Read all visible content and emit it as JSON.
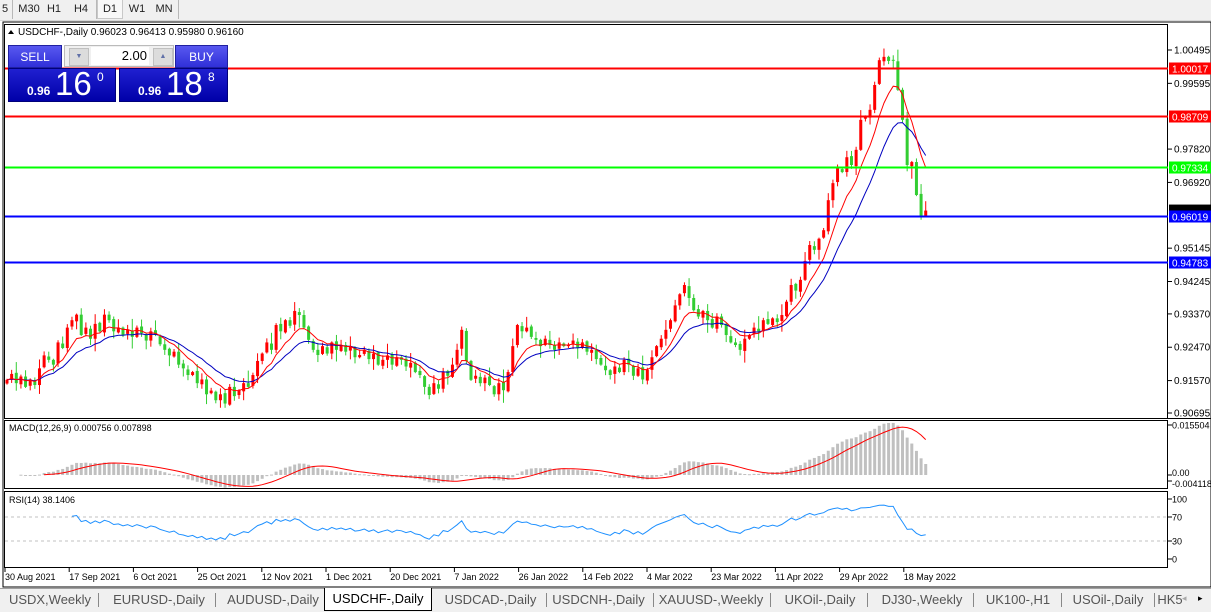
{
  "toolbar": {
    "timeframes": [
      {
        "label": "5",
        "active": false
      },
      {
        "label": "M30",
        "active": false
      },
      {
        "label": "H1",
        "active": false
      },
      {
        "label": "H4",
        "active": false
      },
      {
        "label": "D1",
        "active": true
      },
      {
        "label": "W1",
        "active": false
      },
      {
        "label": "MN",
        "active": false
      }
    ]
  },
  "chart": {
    "header": "USDCHF-,Daily  0.96023 0.96413 0.95980 0.96160",
    "symbol": "USDCHF-",
    "timeframe": "Daily",
    "ohlc": {
      "open": 0.96023,
      "high": 0.96413,
      "low": 0.9598,
      "close": 0.9616
    },
    "bull_color": "#ff0000",
    "bear_color": "#32cd32",
    "price_ticks": [
      "1.00495",
      "0.99595",
      "0.97820",
      "0.96920",
      "0.95145",
      "0.94245",
      "0.93370",
      "0.92470",
      "0.91570",
      "0.90695"
    ],
    "horizontal_lines": [
      {
        "price": "1.00017",
        "color": "#ff0000"
      },
      {
        "price": "0.98709",
        "color": "#ff0000"
      },
      {
        "price": "0.97334",
        "color": "#00ff00"
      },
      {
        "price": "0.96019",
        "color": "#0000ff"
      },
      {
        "price": "0.94783",
        "color": "#0000ff"
      }
    ],
    "current_price": "0.96160",
    "ma_colors": {
      "fast": "#ff0000",
      "slow": "#0000c0"
    },
    "closes": [
      0.9159,
      0.9175,
      0.915,
      0.9168,
      0.914,
      0.916,
      0.9145,
      0.919,
      0.9225,
      0.9213,
      0.92,
      0.926,
      0.9245,
      0.93,
      0.932,
      0.9335,
      0.928,
      0.93,
      0.927,
      0.931,
      0.929,
      0.9335,
      0.932,
      0.929,
      0.93,
      0.928,
      0.9295,
      0.9275,
      0.93,
      0.9285,
      0.9265,
      0.929,
      0.928,
      0.9255,
      0.924,
      0.9225,
      0.9235,
      0.92,
      0.919,
      0.9172,
      0.918,
      0.915,
      0.916,
      0.912,
      0.913,
      0.9104,
      0.912,
      0.9095,
      0.914,
      0.9115,
      0.9131,
      0.915,
      0.914,
      0.9172,
      0.921,
      0.923,
      0.926,
      0.924,
      0.9307,
      0.929,
      0.932,
      0.9305,
      0.9345,
      0.9334,
      0.93,
      0.9267,
      0.924,
      0.9226,
      0.925,
      0.923,
      0.926,
      0.924,
      0.9253,
      0.9235,
      0.925,
      0.922,
      0.9226,
      0.924,
      0.9215,
      0.923,
      0.92,
      0.9213,
      0.9225,
      0.92,
      0.922,
      0.9213,
      0.9195,
      0.9205,
      0.918,
      0.9172,
      0.914,
      0.9118,
      0.915,
      0.9135,
      0.918,
      0.917,
      0.92,
      0.924,
      0.9294,
      0.921,
      0.9159,
      0.917,
      0.915,
      0.9165,
      0.9145,
      0.912,
      0.915,
      0.9131,
      0.918,
      0.925,
      0.9307,
      0.929,
      0.93,
      0.9275,
      0.9267,
      0.925,
      0.927,
      0.9253,
      0.924,
      0.926,
      0.925,
      0.9253,
      0.9265,
      0.9245,
      0.926,
      0.9235,
      0.924,
      0.9215,
      0.92,
      0.9185,
      0.9172,
      0.9195,
      0.918,
      0.9213,
      0.92,
      0.917,
      0.919,
      0.916,
      0.9186,
      0.922,
      0.925,
      0.927,
      0.9294,
      0.932,
      0.936,
      0.939,
      0.9415,
      0.938,
      0.9347,
      0.933,
      0.9345,
      0.932,
      0.93,
      0.933,
      0.9307,
      0.928,
      0.926,
      0.9253,
      0.924,
      0.927,
      0.928,
      0.93,
      0.929,
      0.932,
      0.931,
      0.9325,
      0.9315,
      0.9334,
      0.937,
      0.9415,
      0.94,
      0.9429,
      0.948,
      0.9523,
      0.951,
      0.954,
      0.9563,
      0.9644,
      0.969,
      0.9731,
      0.972,
      0.976,
      0.9739,
      0.978,
      0.9861,
      0.987,
      0.9888,
      0.9955,
      1.0022,
      1.0031,
      1.002,
      1.0022,
      0.9942,
      0.9861,
      0.9739,
      0.9747,
      0.9658,
      0.9602,
      0.9616
    ],
    "dates": [
      "30 Aug 2021",
      "17 Sep 2021",
      "6 Oct 2021",
      "25 Oct 2021",
      "12 Nov 2021",
      "1 Dec 2021",
      "20 Dec 2021",
      "7 Jan 2022",
      "26 Jan 2022",
      "14 Feb 2022",
      "4 Mar 2022",
      "23 Mar 2022",
      "11 Apr 2022",
      "29 Apr 2022",
      "18 May 2022"
    ]
  },
  "macd": {
    "label": "MACD(12,26,9) 0.000756 0.007898",
    "ticks": [
      "0.015504",
      "0.00",
      "-0.004118"
    ],
    "signal_color": "#ff0000",
    "hist_color": "#c0c0c0"
  },
  "rsi": {
    "label": "RSI(14) 38.1406",
    "ticks": [
      "100",
      "70",
      "30",
      "0"
    ],
    "line_color": "#1e90ff"
  },
  "trade_panel": {
    "sell_label": "SELL",
    "buy_label": "BUY",
    "lot": "2.00",
    "sell_price": {
      "prefix": "0.96",
      "big": "16",
      "sup": "0"
    },
    "buy_price": {
      "prefix": "0.96",
      "big": "18",
      "sup": "8"
    }
  },
  "tabs": [
    {
      "label": "USDX,Weekly",
      "active": false
    },
    {
      "label": "EURUSD-,Daily",
      "active": false
    },
    {
      "label": "AUDUSD-,Daily",
      "active": false
    },
    {
      "label": "USDCHF-,Daily",
      "active": true
    },
    {
      "label": "USDCAD-,Daily",
      "active": false
    },
    {
      "label": "USDCNH-,Daily",
      "active": false
    },
    {
      "label": "XAUUSD-,Weekly",
      "active": false
    },
    {
      "label": "UKOil-,Daily",
      "active": false
    },
    {
      "label": "DJ30-,Weekly",
      "active": false
    },
    {
      "label": "UK100-,H1",
      "active": false
    },
    {
      "label": "USOil-,Daily",
      "active": false
    },
    {
      "label": "HK5",
      "active": false
    }
  ]
}
